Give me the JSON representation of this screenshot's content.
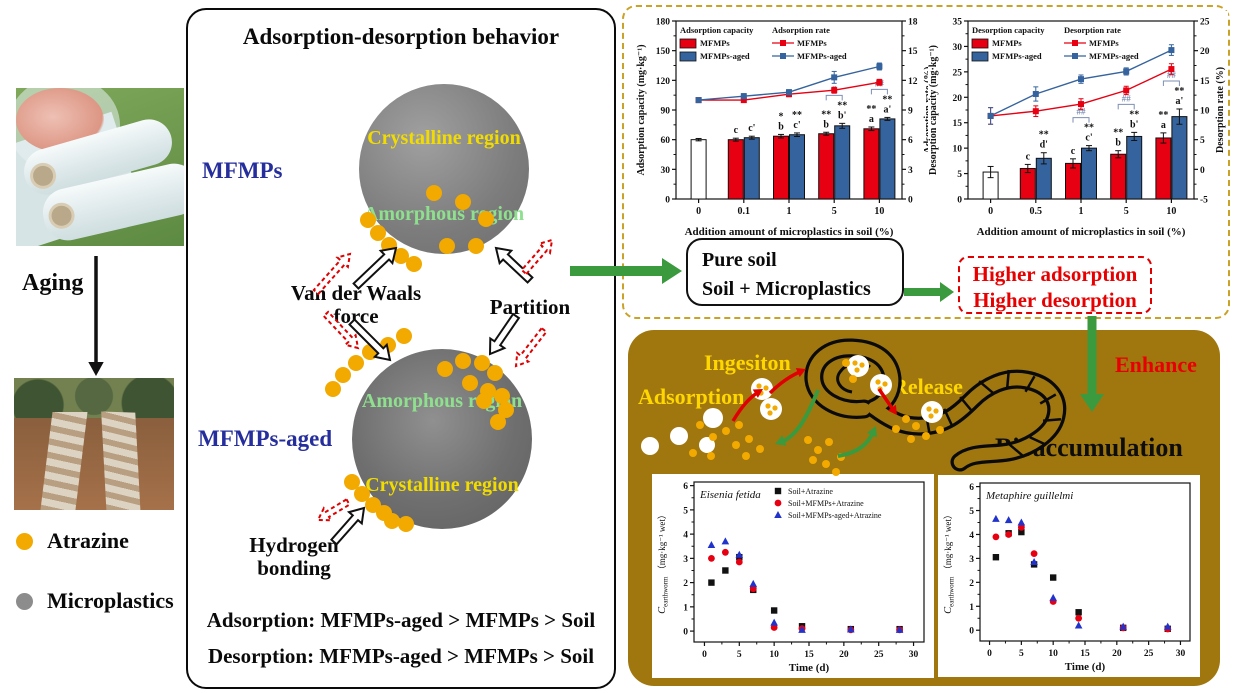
{
  "left_panel": {
    "aging_label": "Aging",
    "legend": [
      {
        "name": "Atrazine",
        "color": "#f2a900"
      },
      {
        "name": "Microplastics",
        "color": "#8c8c8c"
      }
    ]
  },
  "behavior_panel": {
    "title": "Adsorption-desorption behavior",
    "mfmps_label": "MFMPs",
    "mfmps_aged_label": "MFMPs-aged",
    "crystalline_label": "Crystalline region",
    "amorphous_label": "Amorphous region",
    "van_der_waals_label": "Van der Waals force",
    "partition_label": "Partition",
    "hydrogen_label": "Hydrogen bonding",
    "adsorption_order": "Adsorption: MFMPs-aged > MFMPs > Soil",
    "desorption_order": "Desorption: MFMPs-aged > MFMPs > Soil"
  },
  "soil_box": {
    "line1": "Pure soil",
    "line2": "Soil + Microplastics"
  },
  "result_box": {
    "line1": "Higher adsorption",
    "line2": "Higher desorption"
  },
  "bio_panel": {
    "adsorption_label": "Adsorption",
    "ingestion_label": "Ingesiton",
    "release_label": "Release",
    "enhance_label": "Enhance",
    "bioaccumulation_label": "Bioaccumulation"
  },
  "colors": {
    "red": "#e60012",
    "blue": "#35639d",
    "scatter_blue": "#2233cc",
    "green": "#3a9a3d",
    "olive": "#a0770f",
    "gold": "#f2a900",
    "dashed_border": "#c9a227",
    "navy": "#252e9c",
    "bracket": "#7d8fb5",
    "red_arrow": "#e00000"
  },
  "chart_data": [
    {
      "id": "chart-adsorption",
      "type": "bar+line",
      "x_label": "Addition amount of microplastics in soil (%)",
      "categories": [
        "0",
        "0.1",
        "1",
        "5",
        "10"
      ],
      "left_axis": {
        "label": "Adsorption capacity (mg·kg⁻¹)",
        "min": 0,
        "max": 180,
        "step": 30
      },
      "right_axis": {
        "label": "Adsorption rate (%)",
        "min": 0,
        "max": 18,
        "step": 3
      },
      "legend": {
        "bar_title": "Adsorption capacity",
        "line_title": "Adsorption rate",
        "bar_series": [
          "MFMPs",
          "MFMPs-aged"
        ],
        "line_series": [
          "MFMPs",
          "MFMPs-aged"
        ]
      },
      "bar_groups": [
        [
          {
            "series": "Pure soil",
            "color": "white",
            "value": 60,
            "err": 1.2,
            "sig": ""
          }
        ],
        [
          {
            "series": "MFMPs",
            "color": "red",
            "value": 60,
            "err": 1.5,
            "sig": "c"
          },
          {
            "series": "MFMPs-aged",
            "color": "blue",
            "value": 62,
            "err": 1.5,
            "sig": "c'"
          }
        ],
        [
          {
            "series": "MFMPs",
            "color": "red",
            "value": 63.5,
            "err": 1.8,
            "sig": "*|b"
          },
          {
            "series": "MFMPs-aged",
            "color": "blue",
            "value": 65,
            "err": 1.8,
            "sig": "**|c'"
          }
        ],
        [
          {
            "series": "MFMPs",
            "color": "red",
            "value": 66,
            "err": 1.5,
            "sig": "**|b"
          },
          {
            "series": "MFMPs-aged",
            "color": "blue",
            "value": 74,
            "err": 2.5,
            "sig": "**|b'"
          }
        ],
        [
          {
            "series": "MFMPs",
            "color": "red",
            "value": 71,
            "err": 1.8,
            "sig": "**|a"
          },
          {
            "series": "MFMPs-aged",
            "color": "blue",
            "value": 81,
            "err": 1.5,
            "sig": "**|a'"
          }
        ]
      ],
      "brackets": [
        {
          "group": 3,
          "text": "#"
        },
        {
          "group": 4,
          "text": "##"
        }
      ],
      "lines": [
        {
          "name": "MFMPs",
          "color": "red",
          "values": [
            10,
            10,
            10.6,
            11,
            11.8
          ],
          "errs": [
            0.2,
            0.2,
            0.25,
            0.3,
            0.3
          ]
        },
        {
          "name": "MFMPs-aged",
          "color": "blue",
          "values": [
            10,
            10.4,
            10.8,
            12.3,
            13.4
          ],
          "errs": [
            0.2,
            0.25,
            0.25,
            0.6,
            0.35
          ]
        }
      ]
    },
    {
      "id": "chart-desorption",
      "type": "bar+line",
      "x_label": "Addition amount of microplastics in soil (%)",
      "categories": [
        "0",
        "0.5",
        "1",
        "5",
        "10"
      ],
      "left_axis": {
        "label": "Desorption capacity (mg·kg⁻¹)",
        "min": 0,
        "max": 35,
        "step": 5
      },
      "right_axis": {
        "label": "Desorption rate (%)",
        "min": -5,
        "max": 25,
        "step": 5
      },
      "legend": {
        "bar_title": "Desorption capacity",
        "line_title": "Desorption rate",
        "bar_series": [
          "MFMPs",
          "MFMPs-aged"
        ],
        "line_series": [
          "MFMPs",
          "MFMPs-aged"
        ]
      },
      "bar_groups": [
        [
          {
            "series": "Pure soil",
            "color": "white",
            "value": 5.3,
            "err": 1.1,
            "sig": ""
          }
        ],
        [
          {
            "series": "MFMPs",
            "color": "red",
            "value": 6,
            "err": 0.8,
            "sig": "c"
          },
          {
            "series": "MFMPs-aged",
            "color": "blue",
            "value": 8,
            "err": 1.1,
            "sig": "**|d'"
          }
        ],
        [
          {
            "series": "MFMPs",
            "color": "red",
            "value": 7,
            "err": 0.9,
            "sig": "c"
          },
          {
            "series": "MFMPs-aged",
            "color": "blue",
            "value": 10,
            "err": 0.5,
            "sig": "**|c'"
          }
        ],
        [
          {
            "series": "MFMPs",
            "color": "red",
            "value": 8.8,
            "err": 0.7,
            "sig": "**|b"
          },
          {
            "series": "MFMPs-aged",
            "color": "blue",
            "value": 12.3,
            "err": 0.8,
            "sig": "**|b'"
          }
        ],
        [
          {
            "series": "MFMPs",
            "color": "red",
            "value": 12,
            "err": 1.0,
            "sig": "**|a"
          },
          {
            "series": "MFMPs-aged",
            "color": "blue",
            "value": 16.2,
            "err": 1.5,
            "sig": "**|a'"
          }
        ]
      ],
      "brackets": [
        {
          "group": 2,
          "text": "##"
        },
        {
          "group": 3,
          "text": "##"
        },
        {
          "group": 4,
          "text": "##"
        }
      ],
      "lines": [
        {
          "name": "MFMPs",
          "color": "red",
          "values": [
            9,
            9.8,
            11,
            13.3,
            16.9
          ],
          "errs": [
            1.4,
            0.9,
            0.9,
            0.7,
            0.9
          ]
        },
        {
          "name": "MFMPs-aged",
          "color": "blue",
          "values": [
            9,
            12.7,
            15.2,
            16.5,
            20.1
          ],
          "errs": [
            1.4,
            1.2,
            0.7,
            0.6,
            0.9
          ]
        }
      ]
    },
    {
      "id": "chart-eisenia",
      "type": "scatter",
      "title": "Eisenia fetida",
      "x_label": "Time (d)",
      "x": [
        1,
        3,
        5,
        7,
        10,
        14,
        21,
        28
      ],
      "x_axis": {
        "min": 0,
        "max": 30,
        "step": 5
      },
      "y_axis": {
        "min": 0,
        "max": 6,
        "step": 1
      },
      "y_label": {
        "sym": "C",
        "sub": "earthworm",
        "unit": "（mg·kg⁻¹ wet）"
      },
      "legend_entries": [
        "Soil+Atrazine",
        "Soil+MFMPs+Atrazine",
        "Soil+MFMPs-aged+Atrazine"
      ],
      "series": [
        {
          "name": "Soil+Atrazine",
          "color": "black",
          "marker": "square",
          "values": [
            2.0,
            2.5,
            3.05,
            1.7,
            0.85,
            0.2,
            0.08,
            0.08
          ]
        },
        {
          "name": "Soil+MFMPs+Atrazine",
          "color": "red",
          "marker": "circle",
          "values": [
            3.0,
            3.25,
            2.85,
            1.75,
            0.15,
            0.1,
            0.05,
            0.05
          ]
        },
        {
          "name": "Soil+MFMPs-aged+Atrazine",
          "color": "blue",
          "marker": "triangle",
          "values": [
            3.55,
            3.7,
            3.15,
            1.95,
            0.35,
            0.05,
            0.07,
            0.05
          ]
        }
      ]
    },
    {
      "id": "chart-metaphire",
      "type": "scatter",
      "title": "Metaphire guillelmi",
      "x_label": "Time (d)",
      "x": [
        1,
        3,
        5,
        7,
        10,
        14,
        21,
        28
      ],
      "x_axis": {
        "min": 0,
        "max": 30,
        "step": 5
      },
      "y_axis": {
        "min": 0,
        "max": 6,
        "step": 1
      },
      "y_label": {
        "sym": "C",
        "sub": "earthworm",
        "unit": "（mg·kg⁻¹ wet）"
      },
      "series": [
        {
          "name": "Soil+Atrazine",
          "color": "black",
          "marker": "square",
          "values": [
            3.05,
            4.05,
            4.1,
            2.75,
            2.2,
            0.75,
            0.1,
            0.06
          ]
        },
        {
          "name": "Soil+MFMPs+Atrazine",
          "color": "red",
          "marker": "circle",
          "values": [
            3.9,
            4.0,
            4.3,
            3.2,
            1.2,
            0.5,
            0.1,
            0.05
          ]
        },
        {
          "name": "Soil+MFMPs-aged+Atrazine",
          "color": "blue",
          "marker": "triangle",
          "values": [
            4.65,
            4.6,
            4.5,
            2.85,
            1.35,
            0.2,
            0.15,
            0.15
          ]
        }
      ]
    }
  ]
}
